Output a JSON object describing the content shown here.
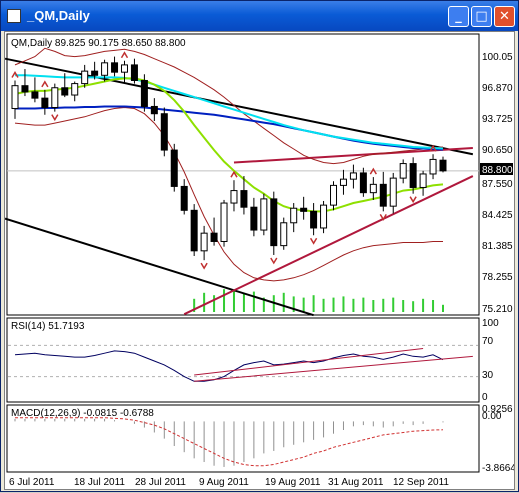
{
  "window": {
    "title": "_QM,Daily",
    "minimize": "_",
    "maximize": "□",
    "close": "✕"
  },
  "main_panel": {
    "header": "QM,Daily  89.825 90.175 88.650 88.800",
    "price_ticks": [
      "100.05",
      "96.870",
      "93.725",
      "90.650",
      "87.550",
      "84.425",
      "81.385",
      "78.255",
      "75.210"
    ],
    "current_price": "88.800"
  },
  "rsi_panel": {
    "header": "RSI(14) 51.7193",
    "ticks": [
      "100",
      "70",
      "30",
      "0"
    ]
  },
  "macd_panel": {
    "header": "MACD(12,26,9) -0.0815 -0.6788",
    "ticks": [
      "0.9256",
      "0.00",
      "-3.8664"
    ]
  },
  "date_axis": [
    "6 Jul 2011",
    "18 Jul 2011",
    "28 Jul 2011",
    "9 Aug 2011",
    "19 Aug 2011",
    "31 Aug 2011",
    "12 Sep 2011"
  ],
  "colors": {
    "bull": "#ffffff",
    "bear": "#000000",
    "channel": "#000000",
    "trend": "#b0183c",
    "ma_fast": "#8ee000",
    "ma_slow": "#00e0f0",
    "ma_long": "#0020c0",
    "volume": "#33cc33",
    "signal": "#d03030"
  },
  "chart_data": [
    {
      "type": "candlestick",
      "title": "QM,Daily",
      "ylim": [
        75.21,
        100.05
      ],
      "candles": [
        [
          94.8,
          97.5,
          93.8,
          97.0
        ],
        [
          97.0,
          98.6,
          96.0,
          96.4
        ],
        [
          96.4,
          97.8,
          95.4,
          95.8
        ],
        [
          95.8,
          96.6,
          94.2,
          94.9
        ],
        [
          94.9,
          97.2,
          94.5,
          96.8
        ],
        [
          96.8,
          98.2,
          95.9,
          96.1
        ],
        [
          96.1,
          97.4,
          95.5,
          97.2
        ],
        [
          97.2,
          99.0,
          96.8,
          98.4
        ],
        [
          98.4,
          99.3,
          97.6,
          98.0
        ],
        [
          98.0,
          99.5,
          97.4,
          99.2
        ],
        [
          99.2,
          99.8,
          97.9,
          98.3
        ],
        [
          98.3,
          99.4,
          97.3,
          99.0
        ],
        [
          99.0,
          99.6,
          97.2,
          97.5
        ],
        [
          97.5,
          98.1,
          94.5,
          95.0
        ],
        [
          95.0,
          95.8,
          93.6,
          94.3
        ],
        [
          94.3,
          94.9,
          90.2,
          90.8
        ],
        [
          90.8,
          91.4,
          86.8,
          87.3
        ],
        [
          87.3,
          88.0,
          84.6,
          85.0
        ],
        [
          85.0,
          85.6,
          80.6,
          81.1
        ],
        [
          81.1,
          83.5,
          80.2,
          82.8
        ],
        [
          82.8,
          84.3,
          81.6,
          82.0
        ],
        [
          82.0,
          86.0,
          81.5,
          85.7
        ],
        [
          85.7,
          87.9,
          84.9,
          86.9
        ],
        [
          86.9,
          88.3,
          84.6,
          85.3
        ],
        [
          85.3,
          86.2,
          82.5,
          83.1
        ],
        [
          83.1,
          86.6,
          82.6,
          86.1
        ],
        [
          86.1,
          86.8,
          80.7,
          81.6
        ],
        [
          81.6,
          84.3,
          81.2,
          83.8
        ],
        [
          83.8,
          85.7,
          82.9,
          85.2
        ],
        [
          85.2,
          86.3,
          84.1,
          84.9
        ],
        [
          84.9,
          85.7,
          82.6,
          83.3
        ],
        [
          83.3,
          85.9,
          82.8,
          85.5
        ],
        [
          85.5,
          87.8,
          85.0,
          87.4
        ],
        [
          87.4,
          88.9,
          86.5,
          88.0
        ],
        [
          88.0,
          89.4,
          87.1,
          88.6
        ],
        [
          88.6,
          89.1,
          86.3,
          86.7
        ],
        [
          86.7,
          88.2,
          86.0,
          87.5
        ],
        [
          87.5,
          88.7,
          84.9,
          85.4
        ],
        [
          85.4,
          88.6,
          84.7,
          88.1
        ],
        [
          88.1,
          89.9,
          87.6,
          89.5
        ],
        [
          89.5,
          90.1,
          86.6,
          87.2
        ],
        [
          87.2,
          88.8,
          86.4,
          88.5
        ],
        [
          88.5,
          90.4,
          88.0,
          89.9
        ],
        [
          89.825,
          90.175,
          88.65,
          88.8
        ]
      ],
      "ma_fast": [
        96.2,
        96.4,
        96.5,
        96.5,
        96.6,
        96.7,
        96.8,
        97.0,
        97.2,
        97.4,
        97.6,
        97.7,
        97.7,
        97.5,
        97.1,
        96.5,
        95.6,
        94.5,
        93.2,
        92.0,
        90.8,
        89.7,
        88.8,
        88.0,
        87.2,
        86.6,
        85.9,
        85.4,
        85.1,
        85.0,
        84.9,
        84.9,
        85.1,
        85.4,
        85.7,
        85.9,
        86.1,
        86.3,
        86.6,
        86.9,
        87.0,
        87.2,
        87.4,
        87.5
      ],
      "ma_slow": [
        98.0,
        98.0,
        97.95,
        97.9,
        97.85,
        97.8,
        97.8,
        97.8,
        97.8,
        97.8,
        97.8,
        97.75,
        97.6,
        97.4,
        97.1,
        96.8,
        96.5,
        96.2,
        95.9,
        95.6,
        95.3,
        95.0,
        94.7,
        94.4,
        94.1,
        93.8,
        93.5,
        93.2,
        92.95,
        92.7,
        92.5,
        92.3,
        92.1,
        91.95,
        91.8,
        91.65,
        91.5,
        91.4,
        91.3,
        91.2,
        91.1,
        91.05,
        91.0,
        90.95
      ],
      "ma_long": [
        94.8,
        94.8,
        94.8,
        94.85,
        94.85,
        94.9,
        94.9,
        94.95,
        94.95,
        95.0,
        95.0,
        95.0,
        94.95,
        94.9,
        94.8,
        94.7,
        94.6,
        94.5,
        94.4,
        94.3,
        94.2,
        94.05,
        93.9,
        93.75,
        93.6,
        93.45,
        93.3,
        93.1,
        92.9,
        92.7,
        92.5,
        92.3,
        92.1,
        91.9,
        91.7,
        91.55,
        91.4,
        91.3,
        91.2,
        91.1,
        91.0,
        90.95,
        90.9,
        90.85
      ],
      "band_upper": [
        99.0,
        99.4,
        99.8,
        100.6,
        100.3,
        99.9,
        99.8,
        99.9,
        100.1,
        100.3,
        100.4,
        100.5,
        100.3,
        100.0,
        99.6,
        99.2,
        98.8,
        98.3,
        97.8,
        97.2,
        96.6,
        95.9,
        95.1,
        94.3,
        93.6,
        92.9,
        92.2,
        91.5,
        90.9,
        90.3,
        89.9,
        89.6,
        89.5,
        89.6,
        89.9,
        90.2,
        90.4,
        90.5,
        90.6,
        90.7,
        90.8,
        90.9,
        91.0,
        91.1
      ],
      "band_lower": [
        93.4,
        93.3,
        93.2,
        93.2,
        93.4,
        93.6,
        93.8,
        94.0,
        94.3,
        94.6,
        94.8,
        94.9,
        94.8,
        94.3,
        93.4,
        92.2,
        90.6,
        88.7,
        86.5,
        84.4,
        82.6,
        81.0,
        79.8,
        79.0,
        78.5,
        78.3,
        78.2,
        78.3,
        78.5,
        78.8,
        79.2,
        79.7,
        80.2,
        80.7,
        81.1,
        81.4,
        81.6,
        81.7,
        81.8,
        81.9,
        81.9,
        81.9,
        82.0,
        82.0
      ],
      "volume": [
        0,
        0,
        0,
        0,
        0,
        0,
        0,
        0,
        0,
        0,
        0,
        0,
        0,
        0,
        0,
        0,
        0,
        0,
        0.55,
        0.8,
        0.7,
        0.95,
        0.9,
        0.75,
        0.85,
        0.6,
        0.7,
        0.8,
        0.65,
        0.6,
        0.7,
        0.55,
        0.6,
        0.65,
        0.55,
        0.6,
        0.5,
        0.55,
        0.6,
        0.5,
        0.45,
        0.55,
        0.5,
        0.3
      ],
      "fractal_highs": [
        0,
        3,
        11,
        22,
        36,
        42
      ],
      "fractal_lows": [
        4,
        19,
        26,
        30,
        37,
        40
      ]
    },
    {
      "type": "line",
      "title": "RSI(14) 51.7193",
      "ylim": [
        0,
        100
      ],
      "values": [
        58,
        59,
        60,
        58,
        57,
        56,
        55,
        55,
        57,
        60,
        63,
        62,
        60,
        55,
        50,
        45,
        38,
        30,
        24,
        24,
        26,
        30,
        38,
        45,
        48,
        50,
        45,
        46,
        48,
        50,
        48,
        50,
        54,
        57,
        59,
        56,
        55,
        52,
        55,
        59,
        56,
        55,
        58,
        51.7
      ]
    },
    {
      "type": "bar",
      "title": "MACD(12,26,9) -0.0815 -0.6788",
      "ylim": [
        -3.8664,
        0.9256
      ],
      "values": [
        0.2,
        0.2,
        0.2,
        0.2,
        0.2,
        0.2,
        0.2,
        0.2,
        0.2,
        0.2,
        0.1,
        0.0,
        -0.2,
        -0.5,
        -0.9,
        -1.4,
        -2.0,
        -2.5,
        -3.0,
        -3.3,
        -3.6,
        -3.7,
        -3.6,
        -3.3,
        -3.0,
        -2.6,
        -2.4,
        -2.1,
        -1.9,
        -1.7,
        -1.5,
        -1.3,
        -1.0,
        -0.7,
        -0.4,
        -0.3,
        -0.4,
        -0.5,
        -0.4,
        -0.2,
        -0.3,
        -0.2,
        0.0,
        -0.08
      ],
      "signal": [
        0.3,
        0.3,
        0.3,
        0.3,
        0.3,
        0.3,
        0.3,
        0.3,
        0.3,
        0.3,
        0.25,
        0.2,
        0.1,
        -0.1,
        -0.3,
        -0.6,
        -1.0,
        -1.4,
        -1.8,
        -2.2,
        -2.6,
        -3.0,
        -3.3,
        -3.5,
        -3.6,
        -3.6,
        -3.5,
        -3.3,
        -3.1,
        -2.9,
        -2.6,
        -2.4,
        -2.1,
        -1.9,
        -1.7,
        -1.5,
        -1.3,
        -1.1,
        -1.0,
        -0.9,
        -0.8,
        -0.75,
        -0.7,
        -0.68
      ]
    }
  ]
}
